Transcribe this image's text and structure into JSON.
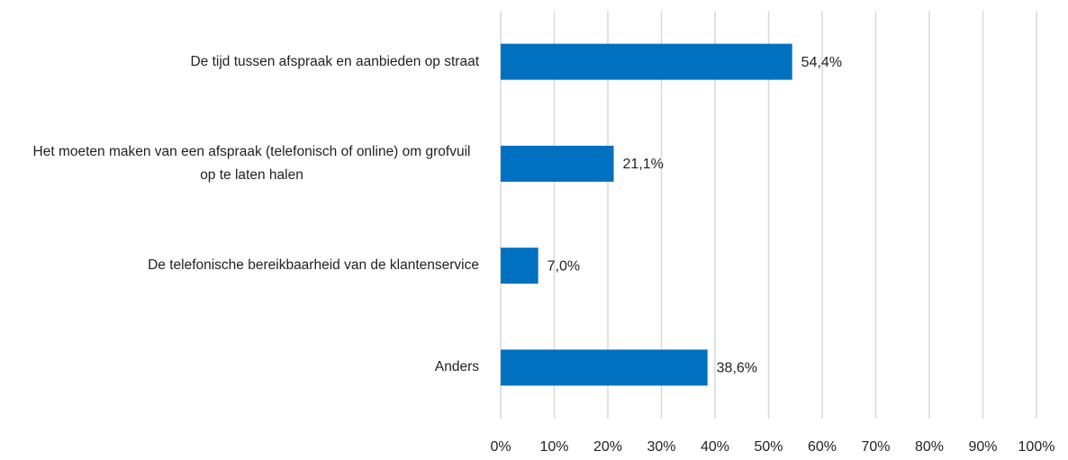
{
  "chart_data": {
    "type": "bar",
    "orientation": "horizontal",
    "categories": [
      "De tijd tussen afspraak en aanbieden op straat",
      "Het moeten maken van een afspraak (telefonisch of online) om grofvuil op te laten halen",
      "De telefonische bereikbaarheid van de klantenservice",
      "Anders"
    ],
    "values": [
      54.4,
      21.1,
      7.0,
      38.6
    ],
    "value_labels": [
      "54,4%",
      "21,1%",
      "7,0%",
      "38,6%"
    ],
    "color": "#0070c0",
    "xlim": [
      0,
      100
    ],
    "xticks": [
      {
        "value": 0,
        "label": "0%"
      },
      {
        "value": 10,
        "label": "10%"
      },
      {
        "value": 20,
        "label": "20%"
      },
      {
        "value": 30,
        "label": "30%"
      },
      {
        "value": 40,
        "label": "40%"
      },
      {
        "value": 50,
        "label": "50%"
      },
      {
        "value": 60,
        "label": "60%"
      },
      {
        "value": 70,
        "label": "70%"
      },
      {
        "value": 80,
        "label": "80%"
      },
      {
        "value": 90,
        "label": "90%"
      },
      {
        "value": 100,
        "label": "100%"
      }
    ],
    "grid": true
  }
}
